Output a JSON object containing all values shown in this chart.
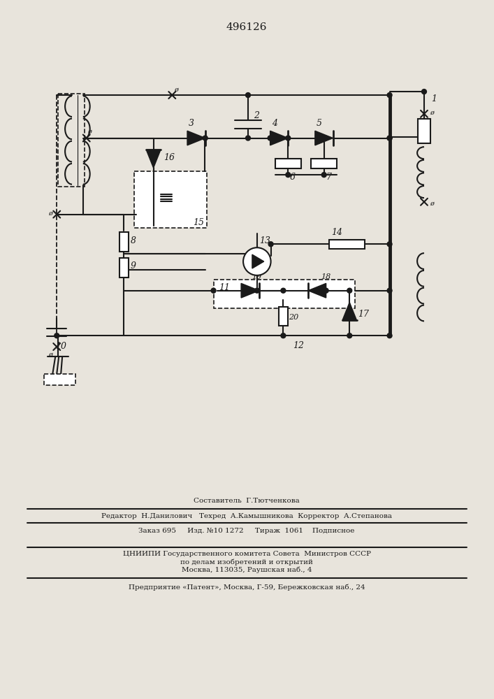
{
  "title": "496126",
  "bg_color": "#e8e4dc",
  "line_color": "#1a1a1a",
  "lw": 1.5,
  "footer": {
    "f1": "Составитель  Г.Тютченкова",
    "f2": "Редактор  Н.Данилович   Техред  А.Камышникова  Корректор  А.Степанова",
    "f3": "Заказ 695     Изд. №10 1272     Тираж  1061    Подписное",
    "f4": "ЦНИИПИ Государственного комитета Совета  Министров СССР",
    "f5": "по делам изобретений и открытий",
    "f6": "Москва, 113035, Раушская наб., 4",
    "f7": "Предприятие «Патент», Москва, Г-59, Бережковская наб., 24"
  }
}
